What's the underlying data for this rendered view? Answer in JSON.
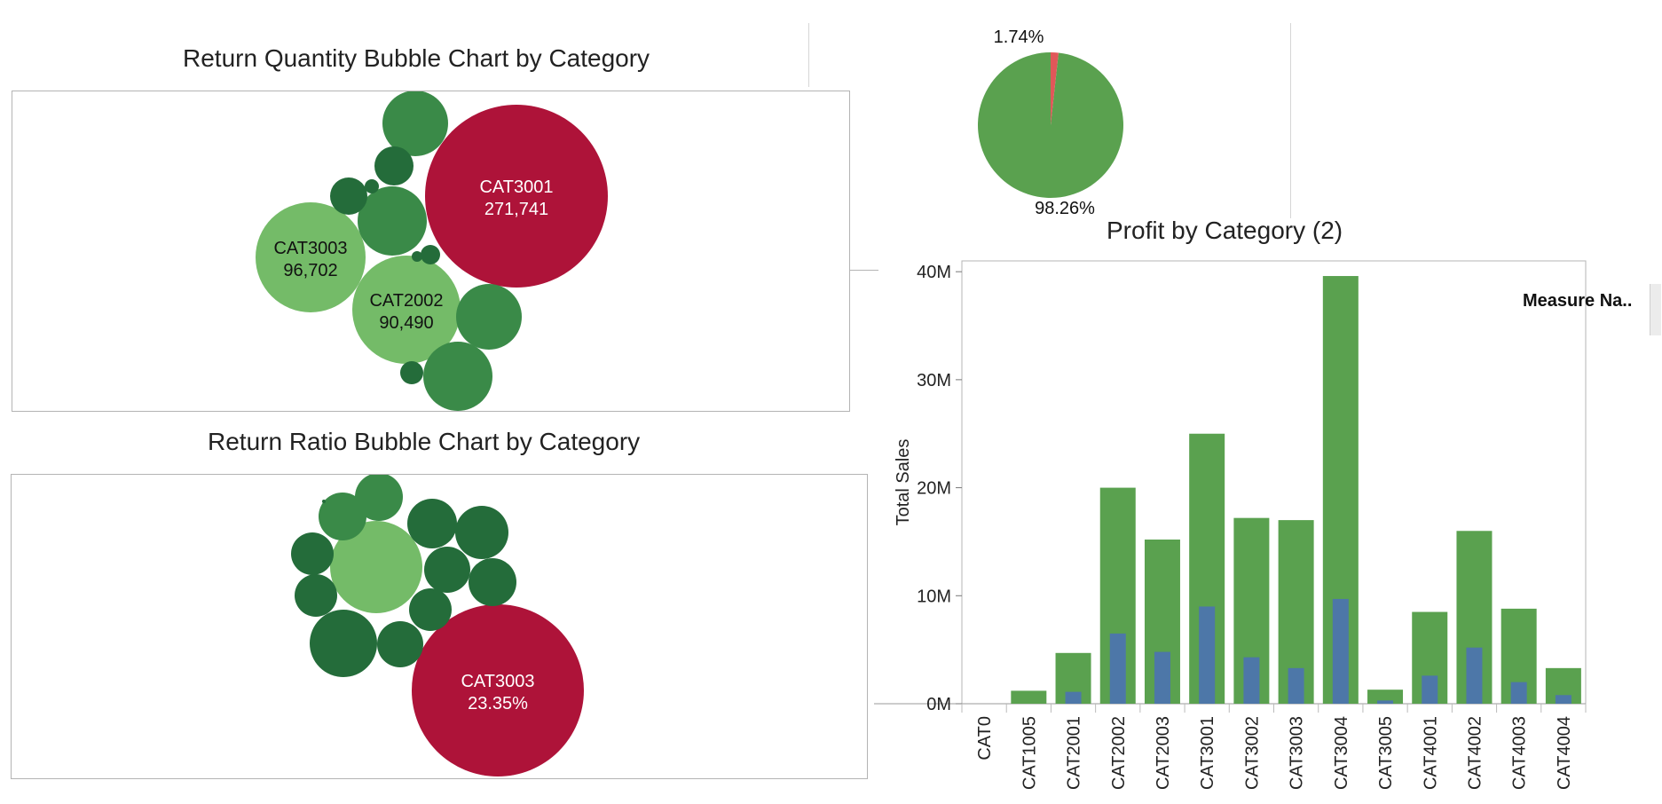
{
  "colors": {
    "highlight": "#ae1339",
    "light_green": "#74bb68",
    "mid_green": "#3a8a48",
    "dark_green": "#246c3a",
    "bar_green": "#5aa14f",
    "bar_blue": "#4d77a8",
    "pie_green": "#5aa14f",
    "pie_red": "#e15759"
  },
  "chart_data": [
    {
      "type": "bubble",
      "title": "Return Quantity Bubble Chart by Category",
      "bubbles": [
        {
          "label": "CAT3001",
          "value_text": "271,741",
          "tone": "highlight"
        },
        {
          "label": "CAT3003",
          "value_text": "96,702",
          "tone": "light"
        },
        {
          "label": "CAT2002",
          "value_text": "90,490",
          "tone": "light"
        },
        {
          "label": "",
          "value_text": "",
          "tone": "mid"
        },
        {
          "label": "",
          "value_text": "",
          "tone": "mid"
        },
        {
          "label": "",
          "value_text": "",
          "tone": "mid"
        },
        {
          "label": "",
          "value_text": "",
          "tone": "mid"
        },
        {
          "label": "",
          "value_text": "",
          "tone": "dark"
        },
        {
          "label": "",
          "value_text": "",
          "tone": "dark"
        },
        {
          "label": "",
          "value_text": "",
          "tone": "dark"
        },
        {
          "label": "",
          "value_text": "",
          "tone": "dark"
        },
        {
          "label": "",
          "value_text": "",
          "tone": "dark"
        },
        {
          "label": "",
          "value_text": "",
          "tone": "dark"
        }
      ]
    },
    {
      "type": "bubble",
      "title": "Return Ratio Bubble Chart by Category",
      "bubbles": [
        {
          "label": "CAT3003",
          "value_text": "23.35%",
          "tone": "highlight"
        },
        {
          "label": "",
          "value_text": "",
          "tone": "light"
        },
        {
          "label": "",
          "value_text": "",
          "tone": "mid"
        },
        {
          "label": "",
          "value_text": "",
          "tone": "mid"
        },
        {
          "label": "",
          "value_text": "",
          "tone": "dark"
        },
        {
          "label": "",
          "value_text": "",
          "tone": "dark"
        },
        {
          "label": "",
          "value_text": "",
          "tone": "dark"
        },
        {
          "label": "",
          "value_text": "",
          "tone": "dark"
        },
        {
          "label": "",
          "value_text": "",
          "tone": "dark"
        },
        {
          "label": "",
          "value_text": "",
          "tone": "dark"
        },
        {
          "label": "",
          "value_text": "",
          "tone": "dark"
        },
        {
          "label": "",
          "value_text": "",
          "tone": "dark"
        },
        {
          "label": "",
          "value_text": "",
          "tone": "dark"
        },
        {
          "label": "",
          "value_text": "",
          "tone": "dark"
        }
      ]
    },
    {
      "type": "pie",
      "title": "",
      "slices": [
        {
          "label": "98.26%",
          "value": 98.26,
          "color_key": "pie_green"
        },
        {
          "label": "1.74%",
          "value": 1.74,
          "color_key": "pie_red"
        }
      ]
    },
    {
      "type": "bar",
      "title": "Profit by Category (2)",
      "xlabel": "",
      "ylabel": "Total Sales",
      "ylim": [
        0,
        41000000
      ],
      "yticks": [
        0,
        10000000,
        20000000,
        30000000,
        40000000
      ],
      "ytick_labels": [
        "0M",
        "10M",
        "20M",
        "30M",
        "40M"
      ],
      "categories": [
        "CAT0",
        "CAT1005",
        "CAT2001",
        "CAT2002",
        "CAT2003",
        "CAT3001",
        "CAT3002",
        "CAT3003",
        "CAT3004",
        "CAT3005",
        "CAT4001",
        "CAT4002",
        "CAT4003",
        "CAT4004"
      ],
      "series": [
        {
          "color_key": "bar_green",
          "values": [
            0,
            1200000,
            4700000,
            20000000,
            15200000,
            25000000,
            17200000,
            17000000,
            39600000,
            1300000,
            8500000,
            16000000,
            8800000,
            3300000
          ]
        },
        {
          "color_key": "bar_blue",
          "values": [
            0,
            0,
            1100000,
            6500000,
            4800000,
            9000000,
            4300000,
            3300000,
            9700000,
            300000,
            2600000,
            5200000,
            2000000,
            800000
          ]
        }
      ],
      "legend": {
        "title": "Measure Na..",
        "placement": "right"
      },
      "grid": false
    }
  ]
}
